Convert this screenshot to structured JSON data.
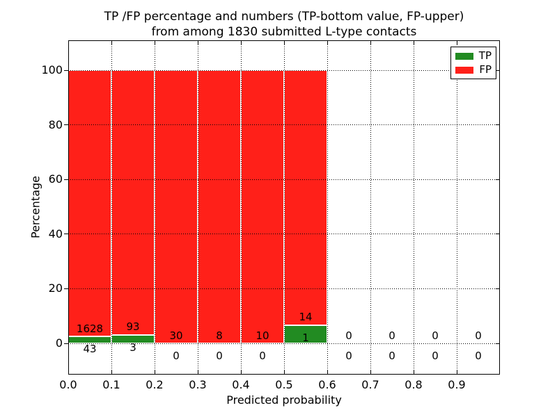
{
  "chart_data": {
    "type": "bar",
    "stacked": true,
    "title": "TP /FP percentage and numbers (TP-bottom value, FP-upper) from among 1830 submitted L-type contacts",
    "title_line1": "TP /FP percentage and numbers (TP-bottom value, FP-upper)",
    "title_line2": "from among 1830 submitted L-type contacts",
    "total_submitted": 1830,
    "xlabel": "Predicted probability",
    "ylabel": "Percentage",
    "xlim": [
      0.0,
      1.0
    ],
    "ylim": [
      -11.5,
      111
    ],
    "grid": {
      "style": "dotted",
      "color": "#000000"
    },
    "x_ticks": [
      {
        "value": 0.0,
        "label": "0.0"
      },
      {
        "value": 0.1,
        "label": "0.1"
      },
      {
        "value": 0.2,
        "label": "0.2"
      },
      {
        "value": 0.3,
        "label": "0.3"
      },
      {
        "value": 0.4,
        "label": "0.4"
      },
      {
        "value": 0.5,
        "label": "0.5"
      },
      {
        "value": 0.6,
        "label": "0.6"
      },
      {
        "value": 0.7,
        "label": "0.7"
      },
      {
        "value": 0.8,
        "label": "0.8"
      },
      {
        "value": 0.9,
        "label": "0.9"
      }
    ],
    "y_ticks": [
      {
        "value": 0,
        "label": "0"
      },
      {
        "value": 20,
        "label": "20"
      },
      {
        "value": 40,
        "label": "40"
      },
      {
        "value": 60,
        "label": "60"
      },
      {
        "value": 80,
        "label": "80"
      },
      {
        "value": 100,
        "label": "100"
      }
    ],
    "legend": {
      "position": "upper-right",
      "entries": [
        {
          "label": "TP",
          "color": "#228b22"
        },
        {
          "label": "FP",
          "color": "#ff2019"
        }
      ]
    },
    "colors": {
      "tp": "#228b22",
      "fp": "#ff2019",
      "axis": "#000000",
      "text": "#000000",
      "background": "#ffffff"
    },
    "bins": [
      {
        "x_start": 0.0,
        "x_end": 0.1,
        "tp_count": 43,
        "fp_count": 1628,
        "tp_pct": 2.57,
        "fp_pct": 97.43
      },
      {
        "x_start": 0.1,
        "x_end": 0.2,
        "tp_count": 3,
        "fp_count": 93,
        "tp_pct": 3.13,
        "fp_pct": 96.87
      },
      {
        "x_start": 0.2,
        "x_end": 0.3,
        "tp_count": 0,
        "fp_count": 30,
        "tp_pct": 0,
        "fp_pct": 100
      },
      {
        "x_start": 0.3,
        "x_end": 0.4,
        "tp_count": 0,
        "fp_count": 8,
        "tp_pct": 0,
        "fp_pct": 100
      },
      {
        "x_start": 0.4,
        "x_end": 0.5,
        "tp_count": 0,
        "fp_count": 10,
        "tp_pct": 0,
        "fp_pct": 100
      },
      {
        "x_start": 0.5,
        "x_end": 0.6,
        "tp_count": 1,
        "fp_count": 14,
        "tp_pct": 6.67,
        "fp_pct": 93.33
      },
      {
        "x_start": 0.6,
        "x_end": 0.7,
        "tp_count": 0,
        "fp_count": 0,
        "tp_pct": null,
        "fp_pct": null
      },
      {
        "x_start": 0.7,
        "x_end": 0.8,
        "tp_count": 0,
        "fp_count": 0,
        "tp_pct": null,
        "fp_pct": null
      },
      {
        "x_start": 0.8,
        "x_end": 0.9,
        "tp_count": 0,
        "fp_count": 0,
        "tp_pct": null,
        "fp_pct": null
      },
      {
        "x_start": 0.9,
        "x_end": 1.0,
        "tp_count": 0,
        "fp_count": 0,
        "tp_pct": null,
        "fp_pct": null
      }
    ]
  }
}
